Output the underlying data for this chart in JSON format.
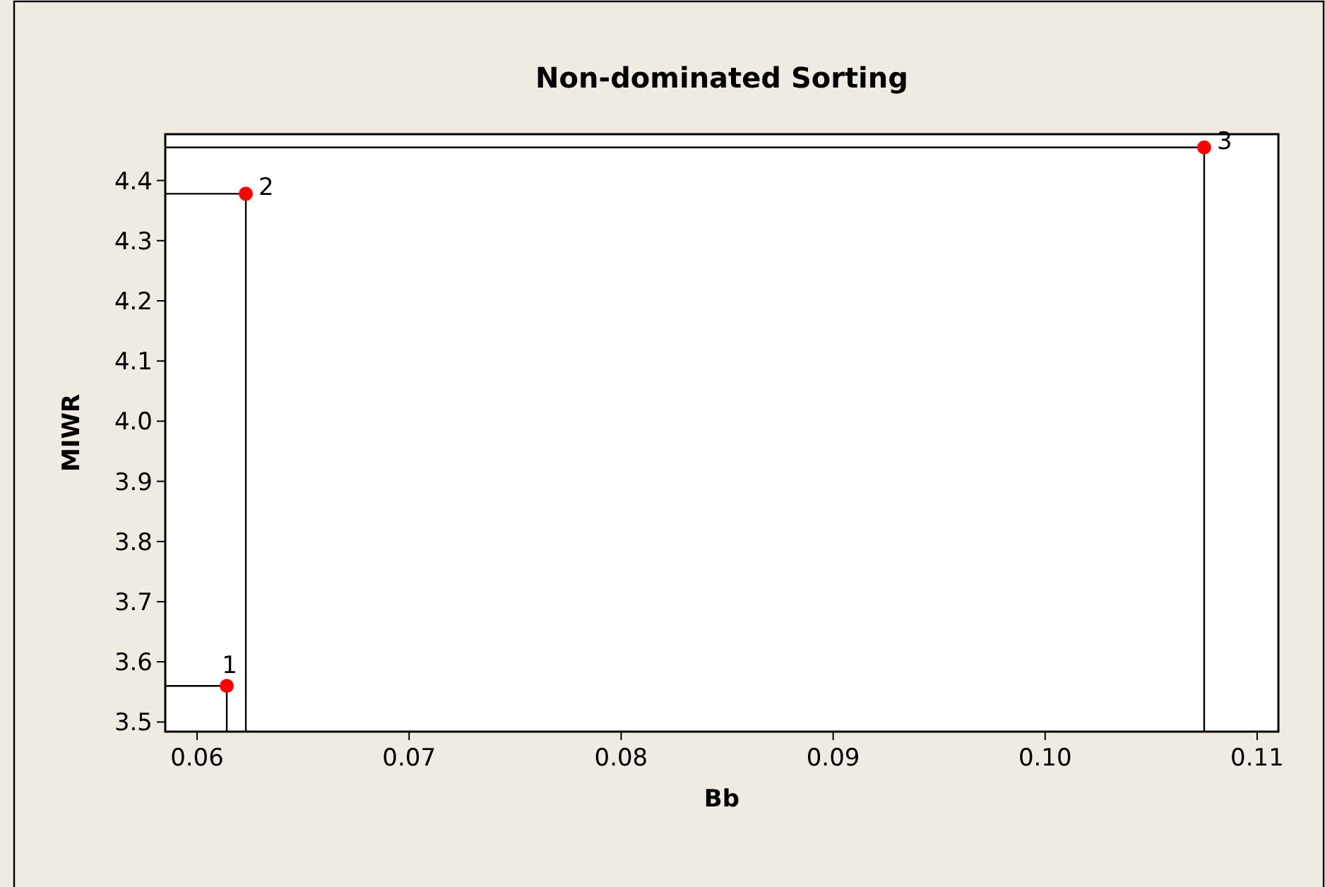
{
  "chart_data": {
    "type": "scatter",
    "title": "Non-dominated Sorting",
    "xlabel": "Bb",
    "ylabel": "MIWR",
    "x": [
      0.0614,
      0.0623,
      0.1075
    ],
    "series": [
      {
        "color": "#ff0000",
        "values": [
          3.56,
          4.378,
          4.455
        ]
      }
    ],
    "annotations": [
      {
        "text": "1",
        "x": 0.0614,
        "y": 3.56
      },
      {
        "text": "2",
        "x": 0.0623,
        "y": 4.378
      },
      {
        "text": "3",
        "x": 0.1075,
        "y": 4.455
      }
    ],
    "xlim": [
      0.0585,
      0.111
    ],
    "xticks": [
      0.06,
      0.07,
      0.08,
      0.09,
      {
        "value": 0.1,
        "label": "0.10"
      },
      0.11
    ],
    "ylim": [
      3.484,
      4.477
    ],
    "yticks": [
      3.5,
      3.6,
      3.7,
      3.8,
      3.9,
      {
        "value": 4.0,
        "label": "4.0"
      },
      4.1,
      4.2,
      4.3,
      4.4
    ],
    "marker": "circle",
    "grid": false
  }
}
